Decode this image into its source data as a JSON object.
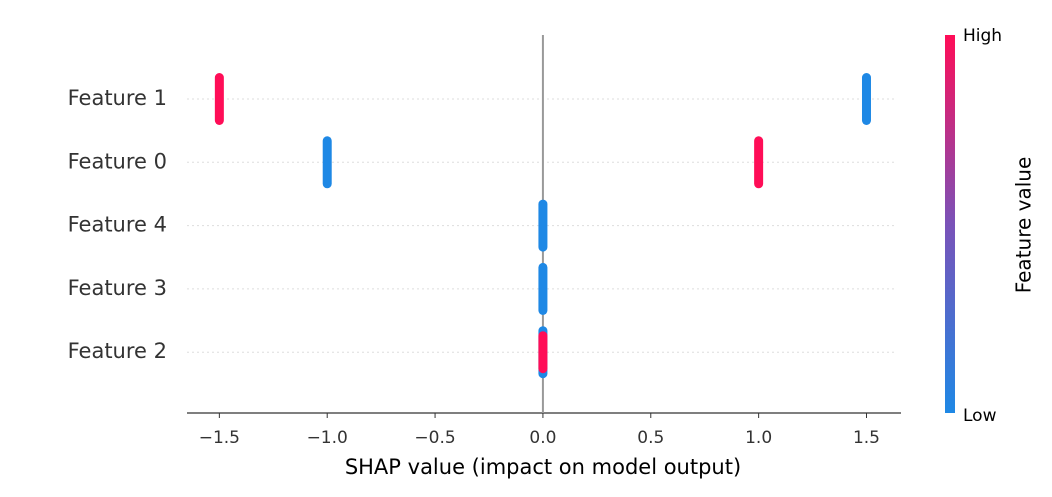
{
  "chart_data": {
    "type": "beeswarm",
    "xlabel": "SHAP value (impact on model output)",
    "colorbar_label": "Feature value",
    "categories": [
      "Feature 1",
      "Feature 0",
      "Feature 4",
      "Feature 3",
      "Feature 2"
    ],
    "series": [
      {
        "name": "High",
        "color": "#ff0d57",
        "values": [
          -1.5,
          1.0,
          null,
          null,
          0
        ]
      },
      {
        "name": "Low",
        "color": "#1e88e5",
        "values": [
          1.5,
          -1.0,
          0,
          0,
          0
        ]
      }
    ],
    "xlim": [
      -1.65,
      1.66
    ],
    "xticks": [
      {
        "value": -1.5,
        "label": "−1.5"
      },
      {
        "value": -1.0,
        "label": "−1.0"
      },
      {
        "value": -0.5,
        "label": "−0.5"
      },
      {
        "value": 0,
        "label": "0.0"
      },
      0.5,
      {
        "value": 1.0,
        "label": "1.0"
      },
      1.5
    ],
    "grid": true
  }
}
